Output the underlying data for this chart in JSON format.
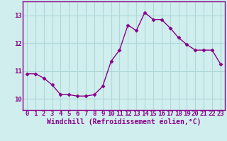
{
  "x": [
    0,
    1,
    2,
    3,
    4,
    5,
    6,
    7,
    8,
    9,
    10,
    11,
    12,
    13,
    14,
    15,
    16,
    17,
    18,
    19,
    20,
    21,
    22,
    23
  ],
  "y": [
    10.9,
    10.9,
    10.75,
    10.5,
    10.15,
    10.15,
    10.1,
    10.1,
    10.15,
    10.45,
    11.35,
    11.75,
    12.65,
    12.45,
    13.1,
    12.85,
    12.85,
    12.55,
    12.2,
    11.95,
    11.75,
    11.75,
    11.75,
    11.25
  ],
  "line_color": "#880088",
  "marker": "D",
  "marker_size": 2.5,
  "bg_color": "#d0eeee",
  "grid_color": "#b0d8d8",
  "xlabel": "Windchill (Refroidissement éolien,°C)",
  "xlabel_fontsize": 7,
  "ylabel_ticks": [
    10,
    11,
    12,
    13
  ],
  "xlim": [
    -0.5,
    23.5
  ],
  "ylim": [
    9.6,
    13.5
  ],
  "ytick_labels": [
    "10",
    "11",
    "12",
    "13"
  ],
  "xtick_labels": [
    "0",
    "1",
    "2",
    "3",
    "4",
    "5",
    "6",
    "7",
    "8",
    "9",
    "10",
    "11",
    "12",
    "13",
    "14",
    "15",
    "16",
    "17",
    "18",
    "19",
    "20",
    "21",
    "22",
    "23"
  ],
  "tick_fontsize": 6.5,
  "spine_color": "#880088",
  "line_width": 1.0
}
